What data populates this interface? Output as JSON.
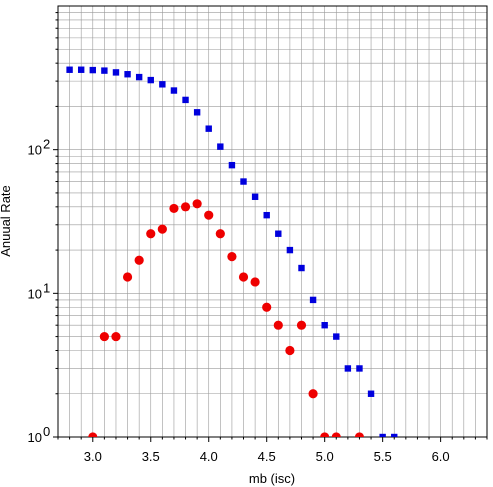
{
  "chart_data": {
    "type": "scatter",
    "title": "",
    "xlabel": "mb (isc)",
    "ylabel": "Anuual Rate",
    "xlim": [
      2.7,
      6.4
    ],
    "ylim": [
      1,
      1000
    ],
    "yscale": "log",
    "grid": true,
    "x_ticks": [
      {
        "value": 3.0,
        "label": "3.0"
      },
      {
        "value": 3.5,
        "label": "3.5"
      },
      {
        "value": 4.0,
        "label": "4.0"
      },
      {
        "value": 4.5,
        "label": "4.5"
      },
      {
        "value": 5.0,
        "label": "5.0"
      },
      {
        "value": 5.5,
        "label": "5.5"
      },
      {
        "value": 6.0,
        "label": "6.0"
      }
    ],
    "y_ticks": [
      {
        "value": 1,
        "base": "10",
        "exp": "0"
      },
      {
        "value": 10,
        "base": "10",
        "exp": "1"
      },
      {
        "value": 100,
        "base": "10",
        "exp": "2"
      }
    ],
    "series": [
      {
        "marker": "square",
        "color": "#0000dd",
        "x": [
          2.8,
          2.9,
          3.0,
          3.1,
          3.2,
          3.3,
          3.4,
          3.5,
          3.6,
          3.7,
          3.8,
          3.9,
          4.0,
          4.1,
          4.2,
          4.3,
          4.4,
          4.5,
          4.6,
          4.7,
          4.8,
          4.9,
          5.0,
          5.1,
          5.2,
          5.3,
          5.4,
          5.5,
          5.6
        ],
        "y": [
          360,
          360,
          358,
          355,
          345,
          335,
          320,
          305,
          285,
          258,
          222,
          182,
          140,
          105,
          78,
          60,
          47,
          35,
          26,
          20,
          15,
          9,
          6,
          5,
          3,
          3,
          2,
          1,
          1
        ]
      },
      {
        "marker": "circle",
        "color": "#ee0000",
        "x": [
          3.0,
          3.1,
          3.2,
          3.3,
          3.4,
          3.5,
          3.6,
          3.7,
          3.8,
          3.9,
          4.0,
          4.1,
          4.2,
          4.3,
          4.4,
          4.5,
          4.6,
          4.7,
          4.8,
          4.9,
          5.0,
          5.1,
          5.3
        ],
        "y": [
          1,
          5,
          5,
          13,
          17,
          26,
          28,
          39,
          40,
          42,
          35,
          26,
          18,
          13,
          12,
          8,
          6,
          4,
          6,
          2,
          1,
          1,
          1
        ]
      }
    ]
  }
}
